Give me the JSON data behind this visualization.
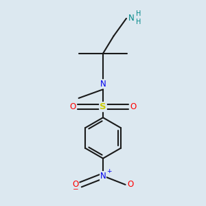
{
  "background_color": "#dce8f0",
  "bond_color": "#1a1a1a",
  "N_color": "#0000ee",
  "S_color": "#cccc00",
  "O_color": "#ff0000",
  "NH_color": "#008888",
  "lw": 1.5,
  "fs": 8.5,
  "xlim": [
    0.15,
    0.85
  ],
  "ylim": [
    -0.05,
    1.0
  ]
}
